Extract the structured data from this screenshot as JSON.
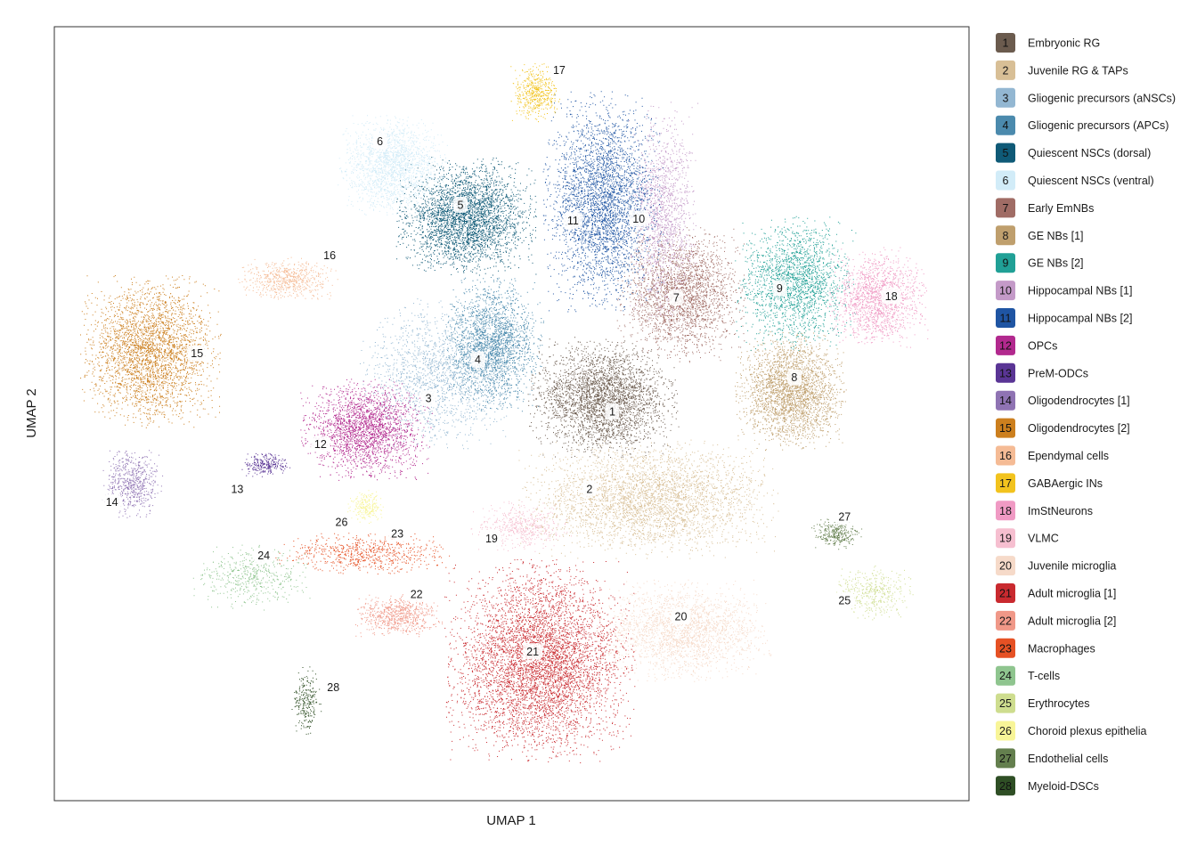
{
  "chart_data": {
    "type": "scatter",
    "title": "",
    "xlabel": "UMAP 1",
    "ylabel": "UMAP 2",
    "grid": false,
    "legend_position": "right",
    "clusters": [
      {
        "id": 1,
        "name": "Embryonic RG",
        "color": "#6b5b4e",
        "cx": 0.6,
        "cy": 0.48,
        "rx": 0.075,
        "ry": 0.07,
        "n": 3200,
        "label_x": 0.61,
        "label_y": 0.497
      },
      {
        "id": 2,
        "name": "Juvenile RG & TAPs",
        "color": "#d8bf96",
        "cx": 0.65,
        "cy": 0.61,
        "rx": 0.13,
        "ry": 0.07,
        "n": 3400,
        "label_x": 0.585,
        "label_y": 0.597
      },
      {
        "id": 3,
        "name": "Gliogenic precursors (aNSCs)",
        "color": "#93b7d2",
        "cx": 0.42,
        "cy": 0.45,
        "rx": 0.08,
        "ry": 0.09,
        "n": 1600,
        "label_x": 0.409,
        "label_y": 0.48
      },
      {
        "id": 4,
        "name": "Gliogenic precursors (APCs)",
        "color": "#4b8aad",
        "cx": 0.48,
        "cy": 0.41,
        "rx": 0.05,
        "ry": 0.08,
        "n": 2200,
        "label_x": 0.463,
        "label_y": 0.43
      },
      {
        "id": 5,
        "name": "Quiescent NSCs (dorsal)",
        "color": "#0f5a77",
        "cx": 0.45,
        "cy": 0.245,
        "rx": 0.07,
        "ry": 0.07,
        "n": 3200,
        "label_x": 0.444,
        "label_y": 0.23
      },
      {
        "id": 6,
        "name": "Quiescent NSCs (ventral)",
        "color": "#d2ecf8",
        "cx": 0.37,
        "cy": 0.18,
        "rx": 0.055,
        "ry": 0.06,
        "n": 1800,
        "label_x": 0.356,
        "label_y": 0.148
      },
      {
        "id": 7,
        "name": "Early EmNBs",
        "color": "#a06c65",
        "cx": 0.685,
        "cy": 0.345,
        "rx": 0.065,
        "ry": 0.08,
        "n": 2400,
        "label_x": 0.68,
        "label_y": 0.35
      },
      {
        "id": 8,
        "name": "GE NBs [1]",
        "color": "#bf9f6d",
        "cx": 0.805,
        "cy": 0.47,
        "rx": 0.055,
        "ry": 0.07,
        "n": 2600,
        "label_x": 0.809,
        "label_y": 0.453
      },
      {
        "id": 9,
        "name": "GE NBs [2]",
        "color": "#20a096",
        "cx": 0.81,
        "cy": 0.33,
        "rx": 0.06,
        "ry": 0.08,
        "n": 2000,
        "label_x": 0.793,
        "label_y": 0.338
      },
      {
        "id": 10,
        "name": "Hippocampal NBs [1]",
        "color": "#c49ac8",
        "cx": 0.665,
        "cy": 0.24,
        "rx": 0.035,
        "ry": 0.13,
        "n": 1400,
        "label_x": 0.639,
        "label_y": 0.248
      },
      {
        "id": 11,
        "name": "Hippocampal NBs [2]",
        "color": "#1f55a3",
        "cx": 0.6,
        "cy": 0.225,
        "rx": 0.06,
        "ry": 0.13,
        "n": 3400,
        "label_x": 0.567,
        "label_y": 0.25
      },
      {
        "id": 12,
        "name": "OPCs",
        "color": "#b2298e",
        "cx": 0.34,
        "cy": 0.52,
        "rx": 0.065,
        "ry": 0.06,
        "n": 2200,
        "label_x": 0.291,
        "label_y": 0.539
      },
      {
        "id": 13,
        "name": "PreM-ODCs",
        "color": "#5a3595",
        "cx": 0.23,
        "cy": 0.565,
        "rx": 0.025,
        "ry": 0.015,
        "n": 260,
        "label_x": 0.2,
        "label_y": 0.597
      },
      {
        "id": 14,
        "name": "Oligodendrocytes [1]",
        "color": "#8f73b3",
        "cx": 0.085,
        "cy": 0.59,
        "rx": 0.03,
        "ry": 0.04,
        "n": 600,
        "label_x": 0.063,
        "label_y": 0.614
      },
      {
        "id": 15,
        "name": "Oligodendrocytes [2]",
        "color": "#cc7f1e",
        "cx": 0.105,
        "cy": 0.42,
        "rx": 0.07,
        "ry": 0.09,
        "n": 3000,
        "label_x": 0.156,
        "label_y": 0.422
      },
      {
        "id": 16,
        "name": "Ependymal cells",
        "color": "#f5bb95",
        "cx": 0.255,
        "cy": 0.325,
        "rx": 0.05,
        "ry": 0.025,
        "n": 600,
        "label_x": 0.301,
        "label_y": 0.295
      },
      {
        "id": 17,
        "name": "GABAergic INs",
        "color": "#f2c31e",
        "cx": 0.525,
        "cy": 0.085,
        "rx": 0.025,
        "ry": 0.035,
        "n": 500,
        "label_x": 0.552,
        "label_y": 0.056
      },
      {
        "id": 18,
        "name": "ImStNeurons",
        "color": "#f09ac4",
        "cx": 0.9,
        "cy": 0.35,
        "rx": 0.05,
        "ry": 0.06,
        "n": 1500,
        "label_x": 0.915,
        "label_y": 0.348
      },
      {
        "id": 19,
        "name": "VLMC",
        "color": "#f6bfd0",
        "cx": 0.51,
        "cy": 0.645,
        "rx": 0.05,
        "ry": 0.03,
        "n": 500,
        "label_x": 0.478,
        "label_y": 0.661
      },
      {
        "id": 20,
        "name": "Juvenile microglia",
        "color": "#f6dac9",
        "cx": 0.685,
        "cy": 0.78,
        "rx": 0.09,
        "ry": 0.06,
        "n": 2200,
        "label_x": 0.685,
        "label_y": 0.762
      },
      {
        "id": 21,
        "name": "Adult microglia [1]",
        "color": "#c92a2f",
        "cx": 0.53,
        "cy": 0.82,
        "rx": 0.095,
        "ry": 0.12,
        "n": 5200,
        "label_x": 0.523,
        "label_y": 0.807
      },
      {
        "id": 22,
        "name": "Adult microglia [2]",
        "color": "#f09888",
        "cx": 0.375,
        "cy": 0.76,
        "rx": 0.045,
        "ry": 0.025,
        "n": 700,
        "label_x": 0.396,
        "label_y": 0.733
      },
      {
        "id": 23,
        "name": "Macrophages",
        "color": "#e65124",
        "cx": 0.34,
        "cy": 0.68,
        "rx": 0.09,
        "ry": 0.025,
        "n": 700,
        "label_x": 0.375,
        "label_y": 0.655
      },
      {
        "id": 24,
        "name": "T-cells",
        "color": "#8fc58f",
        "cx": 0.215,
        "cy": 0.71,
        "rx": 0.06,
        "ry": 0.04,
        "n": 500,
        "label_x": 0.229,
        "label_y": 0.683
      },
      {
        "id": 25,
        "name": "Erythrocytes",
        "color": "#cedd8f",
        "cx": 0.895,
        "cy": 0.73,
        "rx": 0.04,
        "ry": 0.035,
        "n": 400,
        "label_x": 0.864,
        "label_y": 0.741
      },
      {
        "id": 26,
        "name": "Choroid plexus epithelia",
        "color": "#f8f598",
        "cx": 0.34,
        "cy": 0.62,
        "rx": 0.018,
        "ry": 0.02,
        "n": 250,
        "label_x": 0.314,
        "label_y": 0.64
      },
      {
        "id": 27,
        "name": "Endothelial cells",
        "color": "#647f4e",
        "cx": 0.855,
        "cy": 0.655,
        "rx": 0.025,
        "ry": 0.018,
        "n": 300,
        "label_x": 0.864,
        "label_y": 0.633
      },
      {
        "id": 28,
        "name": "Myeloid-DSCs",
        "color": "#2f4f25",
        "cx": 0.275,
        "cy": 0.87,
        "rx": 0.015,
        "ry": 0.04,
        "n": 250,
        "label_x": 0.305,
        "label_y": 0.853
      }
    ]
  }
}
